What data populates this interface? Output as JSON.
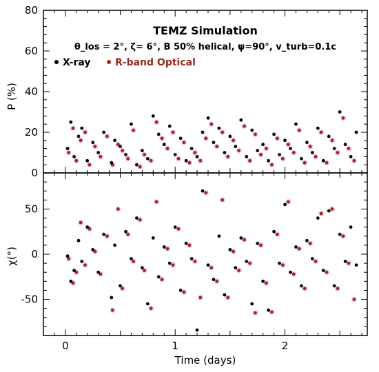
{
  "chart_data": [
    {
      "type": "scatter",
      "panel": "top",
      "title": "TEMZ Simulation",
      "subtitle": "θ_los = 2°, ζ= 6°, B 50% helical, ψ=90°, v_turb=0.1c",
      "ylabel": "P (%)",
      "xlim": [
        -0.2,
        2.75
      ],
      "ylim": [
        0,
        80
      ],
      "yticks": [
        0,
        20,
        40,
        60,
        80
      ],
      "grid": false,
      "legend": "top-left",
      "series": [
        {
          "name": "X-ray",
          "color": "#000000",
          "x": [
            0.02,
            0.05,
            0.08,
            0.12,
            0.15,
            0.2,
            0.25,
            0.3,
            0.35,
            0.42,
            0.45,
            0.5,
            0.55,
            0.6,
            0.65,
            0.7,
            0.75,
            0.8,
            0.85,
            0.9,
            0.95,
            1.0,
            1.05,
            1.1,
            1.15,
            1.2,
            1.25,
            1.3,
            1.35,
            1.4,
            1.45,
            1.5,
            1.55,
            1.6,
            1.65,
            1.7,
            1.75,
            1.8,
            1.85,
            1.9,
            1.95,
            2.0,
            2.05,
            2.1,
            2.15,
            2.2,
            2.25,
            2.3,
            2.35,
            2.4,
            2.45,
            2.5,
            2.55,
            2.6,
            2.65
          ],
          "y": [
            12,
            25,
            8,
            18,
            22,
            6,
            15,
            10,
            20,
            5,
            16,
            13,
            9,
            24,
            4,
            11,
            7,
            28,
            19,
            14,
            23,
            9,
            17,
            6,
            12,
            8,
            20,
            27,
            15,
            22,
            10,
            18,
            13,
            26,
            8,
            21,
            11,
            14,
            6,
            19,
            9,
            16,
            12,
            24,
            7,
            15,
            10,
            22,
            6,
            18,
            12,
            30,
            14,
            8,
            20
          ]
        },
        {
          "name": "R-band Optical",
          "color": "#9a2a1c",
          "x": [
            0.03,
            0.07,
            0.1,
            0.14,
            0.18,
            0.22,
            0.27,
            0.32,
            0.38,
            0.43,
            0.48,
            0.52,
            0.57,
            0.62,
            0.68,
            0.72,
            0.78,
            0.83,
            0.88,
            0.93,
            0.98,
            1.03,
            1.08,
            1.13,
            1.18,
            1.23,
            1.28,
            1.33,
            1.38,
            1.43,
            1.48,
            1.53,
            1.58,
            1.63,
            1.68,
            1.73,
            1.78,
            1.83,
            1.88,
            1.93,
            1.98,
            2.03,
            2.08,
            2.13,
            2.18,
            2.23,
            2.28,
            2.33,
            2.38,
            2.43,
            2.48,
            2.53,
            2.58,
            2.63
          ],
          "y": [
            10,
            22,
            6,
            16,
            20,
            4,
            13,
            8,
            18,
            4,
            14,
            11,
            7,
            21,
            3,
            9,
            6,
            25,
            17,
            12,
            20,
            7,
            15,
            5,
            10,
            6,
            17,
            24,
            13,
            20,
            8,
            16,
            11,
            23,
            6,
            19,
            9,
            12,
            4,
            17,
            7,
            14,
            10,
            21,
            5,
            13,
            8,
            20,
            5,
            16,
            10,
            27,
            12,
            6
          ]
        }
      ]
    },
    {
      "type": "scatter",
      "panel": "bottom",
      "xlabel": "Time (days)",
      "ylabel": "χ(°)",
      "xlim": [
        -0.2,
        2.75
      ],
      "ylim": [
        -90,
        90
      ],
      "xticks": [
        0,
        1,
        2
      ],
      "yticks": [
        -50,
        0,
        50
      ],
      "grid": false,
      "series": [
        {
          "name": "X-ray",
          "color": "#000000",
          "x": [
            0.02,
            0.05,
            0.08,
            0.12,
            0.15,
            0.2,
            0.25,
            0.3,
            0.35,
            0.42,
            0.45,
            0.5,
            0.55,
            0.6,
            0.65,
            0.7,
            0.75,
            0.8,
            0.85,
            0.9,
            0.95,
            1.0,
            1.05,
            1.1,
            1.15,
            1.2,
            1.25,
            1.3,
            1.35,
            1.4,
            1.45,
            1.5,
            1.55,
            1.6,
            1.65,
            1.7,
            1.75,
            1.8,
            1.85,
            1.9,
            1.95,
            2.0,
            2.05,
            2.1,
            2.15,
            2.2,
            2.25,
            2.3,
            2.35,
            2.4,
            2.45,
            2.5,
            2.55,
            2.6,
            2.65
          ],
          "y": [
            -2,
            -30,
            -18,
            15,
            -8,
            30,
            5,
            -20,
            22,
            -48,
            10,
            -35,
            25,
            -5,
            40,
            -15,
            -55,
            18,
            -25,
            8,
            -10,
            30,
            -40,
            12,
            -5,
            -84,
            70,
            -12,
            -28,
            20,
            -45,
            5,
            -15,
            18,
            -8,
            -55,
            12,
            -30,
            -62,
            25,
            -10,
            55,
            -20,
            8,
            -35,
            15,
            -5,
            40,
            -18,
            48,
            -35,
            22,
            -8,
            30,
            -12
          ]
        },
        {
          "name": "R-band Optical",
          "color": "#9a2a1c",
          "x": [
            0.03,
            0.07,
            0.1,
            0.14,
            0.18,
            0.22,
            0.27,
            0.32,
            0.38,
            0.43,
            0.48,
            0.52,
            0.57,
            0.62,
            0.68,
            0.72,
            0.78,
            0.83,
            0.88,
            0.93,
            0.98,
            1.03,
            1.08,
            1.13,
            1.18,
            1.23,
            1.28,
            1.33,
            1.38,
            1.43,
            1.48,
            1.53,
            1.58,
            1.63,
            1.68,
            1.73,
            1.78,
            1.83,
            1.88,
            1.93,
            1.98,
            2.03,
            2.08,
            2.13,
            2.18,
            2.23,
            2.28,
            2.33,
            2.38,
            2.43,
            2.48,
            2.53,
            2.58,
            2.63
          ],
          "y": [
            -5,
            -32,
            -20,
            35,
            -12,
            28,
            3,
            -22,
            20,
            -62,
            50,
            -38,
            22,
            -8,
            38,
            -18,
            -60,
            58,
            -28,
            6,
            -12,
            28,
            -42,
            10,
            -8,
            -48,
            68,
            -15,
            -30,
            60,
            -48,
            3,
            -18,
            16,
            -10,
            -65,
            10,
            -32,
            -64,
            22,
            -12,
            58,
            -22,
            6,
            -38,
            12,
            -8,
            45,
            -20,
            50,
            -38,
            20,
            -10,
            -50
          ]
        }
      ]
    }
  ]
}
